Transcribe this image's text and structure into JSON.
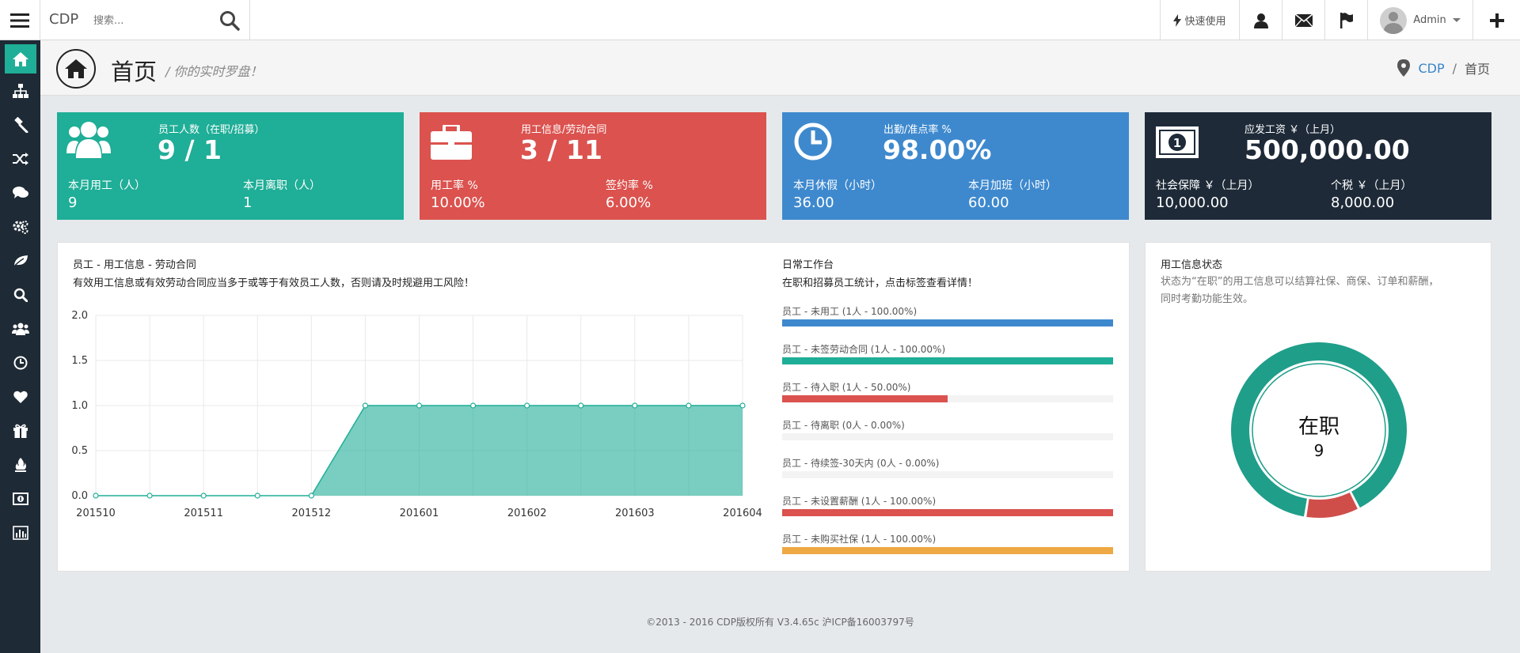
{
  "topbar": {
    "brand": "CDP",
    "search_placeholder": "搜索...",
    "quick_label": "快速使用",
    "user_name": "Admin"
  },
  "header": {
    "title": "首页",
    "subtitle": "/ 你的实时罗盘！",
    "breadcrumb": {
      "root": "CDP",
      "sep": "/",
      "current": "首页"
    }
  },
  "cards": [
    {
      "title": "员工人数（在职/招募）",
      "value": "9 / 1",
      "sub1_label": "本月用工（人）",
      "sub1_value": "9",
      "sub2_label": "本月离职（人）",
      "sub2_value": "1",
      "color": "#1fae97",
      "icon": "users-icon"
    },
    {
      "title": "用工信息/劳动合同",
      "value": "3 / 11",
      "sub1_label": "用工率 %",
      "sub1_value": "10.00%",
      "sub2_label": "签约率 %",
      "sub2_value": "6.00%",
      "color": "#db524e",
      "icon": "briefcase-icon"
    },
    {
      "title": "出勤/准点率 %",
      "value": "98.00%",
      "sub1_label": "本月休假（小时）",
      "sub1_value": "36.00",
      "sub2_label": "本月加班（小时）",
      "sub2_value": "60.00",
      "color": "#3e89ce",
      "icon": "clock-icon"
    },
    {
      "title": "应发工资 ￥（上月）",
      "value": "500,000.00",
      "sub1_label": "社会保障 ￥（上月）",
      "sub1_value": "10,000.00",
      "sub2_label": "个税 ￥（上月）",
      "sub2_value": "8,000.00",
      "color": "#1e2a38",
      "icon": "money-icon"
    }
  ],
  "chart_panel": {
    "title": "员工 - 用工信息 - 劳动合同",
    "desc": "有效用工信息或有效劳动合同应当多于或等于有效员工人数，否则请及时规避用工风险！"
  },
  "chart_data": {
    "type": "area",
    "x_labels": [
      "201510",
      "201511",
      "201512",
      "201601",
      "201602",
      "201603",
      "201604"
    ],
    "values": [
      0,
      0,
      0,
      0,
      0,
      1,
      1,
      1,
      1,
      1,
      1,
      1,
      1
    ],
    "y_ticks": [
      "2.0",
      "1.5",
      "1.0",
      "0.5",
      "0.0"
    ],
    "ylim": [
      0,
      2
    ],
    "color": "#1fae97",
    "grid": true
  },
  "workbench": {
    "title": "日常工作台",
    "desc": "在职和招募员工统计，点击标签查看详情！",
    "bars": [
      {
        "label": "员工 - 未用工 (1人 - 100.00%)",
        "percent": 100,
        "color": "#3e89ce"
      },
      {
        "label": "员工 - 未签劳动合同 (1人 - 100.00%)",
        "percent": 100,
        "color": "#1fae97"
      },
      {
        "label": "员工 - 待入职 (1人 - 50.00%)",
        "percent": 50,
        "color": "#db524e"
      },
      {
        "label": "员工 - 待离职 (0人 - 0.00%)",
        "percent": 0,
        "color": "#db524e"
      },
      {
        "label": "员工 - 待续签-30天内 (0人 - 0.00%)",
        "percent": 0,
        "color": "#db524e"
      },
      {
        "label": "员工 - 未设置薪酬 (1人 - 100.00%)",
        "percent": 100,
        "color": "#db524e"
      },
      {
        "label": "员工 - 未购买社保 (1人 - 100.00%)",
        "percent": 100,
        "color": "#eea944"
      }
    ]
  },
  "status_panel": {
    "title": "用工信息状态",
    "desc_line1": "状态为“在职”的用工信息可以结算社保、商保、订单和薪酬，",
    "desc_line2": "同时考勤功能生效。",
    "center_label": "在职",
    "center_value": "9",
    "donut": [
      {
        "name": "在职",
        "value": 9,
        "color": "#1f9e8a"
      },
      {
        "name": "",
        "value": 1,
        "color": "#d04e4a"
      }
    ]
  },
  "footer": {
    "text": "©2013 - 2016 CDP版权所有 V3.4.65c  沪ICP备16003797号"
  }
}
